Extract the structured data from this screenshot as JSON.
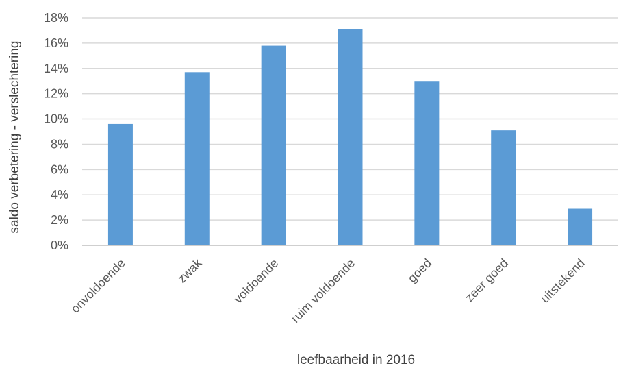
{
  "chart_data": {
    "type": "bar",
    "categories": [
      "onvoldoende",
      "zwak",
      "voldoende",
      "ruim voldoende",
      "goed",
      "zeer goed",
      "uitstekend"
    ],
    "values": [
      9.6,
      13.7,
      15.8,
      17.1,
      13.0,
      9.1,
      2.9
    ],
    "xlabel": "leefbaarheid in 2016",
    "ylabel": "saldo verbetering - verslechtering",
    "ylim": [
      0,
      18
    ],
    "yticks": [
      "0%",
      "2%",
      "4%",
      "6%",
      "8%",
      "10%",
      "12%",
      "14%",
      "16%",
      "18%"
    ],
    "grid": true,
    "bar_color": "#5b9bd5"
  }
}
